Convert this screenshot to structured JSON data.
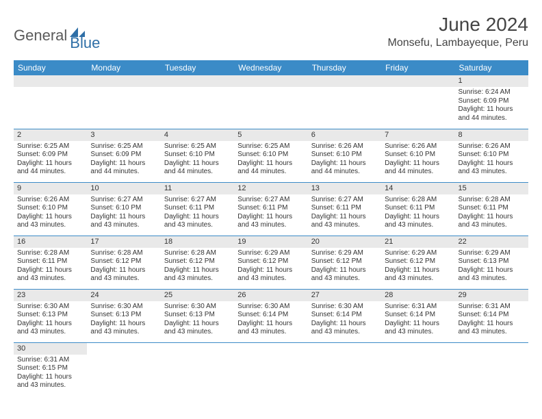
{
  "brand": {
    "part1": "General",
    "part2": "Blue"
  },
  "title": "June 2024",
  "location": "Monsefu, Lambayeque, Peru",
  "colors": {
    "header_bg": "#3b8bc7",
    "header_text": "#ffffff",
    "daynum_bg": "#e9e9e9",
    "border": "#3b8bc7",
    "brand_gray": "#5a5a5a",
    "brand_blue": "#2f6fa7"
  },
  "daysOfWeek": [
    "Sunday",
    "Monday",
    "Tuesday",
    "Wednesday",
    "Thursday",
    "Friday",
    "Saturday"
  ],
  "weeks": [
    [
      null,
      null,
      null,
      null,
      null,
      null,
      {
        "n": "1",
        "sr": "6:24 AM",
        "ss": "6:09 PM",
        "dl": "11 hours and 44 minutes."
      }
    ],
    [
      {
        "n": "2",
        "sr": "6:25 AM",
        "ss": "6:09 PM",
        "dl": "11 hours and 44 minutes."
      },
      {
        "n": "3",
        "sr": "6:25 AM",
        "ss": "6:09 PM",
        "dl": "11 hours and 44 minutes."
      },
      {
        "n": "4",
        "sr": "6:25 AM",
        "ss": "6:10 PM",
        "dl": "11 hours and 44 minutes."
      },
      {
        "n": "5",
        "sr": "6:25 AM",
        "ss": "6:10 PM",
        "dl": "11 hours and 44 minutes."
      },
      {
        "n": "6",
        "sr": "6:26 AM",
        "ss": "6:10 PM",
        "dl": "11 hours and 44 minutes."
      },
      {
        "n": "7",
        "sr": "6:26 AM",
        "ss": "6:10 PM",
        "dl": "11 hours and 44 minutes."
      },
      {
        "n": "8",
        "sr": "6:26 AM",
        "ss": "6:10 PM",
        "dl": "11 hours and 43 minutes."
      }
    ],
    [
      {
        "n": "9",
        "sr": "6:26 AM",
        "ss": "6:10 PM",
        "dl": "11 hours and 43 minutes."
      },
      {
        "n": "10",
        "sr": "6:27 AM",
        "ss": "6:10 PM",
        "dl": "11 hours and 43 minutes."
      },
      {
        "n": "11",
        "sr": "6:27 AM",
        "ss": "6:11 PM",
        "dl": "11 hours and 43 minutes."
      },
      {
        "n": "12",
        "sr": "6:27 AM",
        "ss": "6:11 PM",
        "dl": "11 hours and 43 minutes."
      },
      {
        "n": "13",
        "sr": "6:27 AM",
        "ss": "6:11 PM",
        "dl": "11 hours and 43 minutes."
      },
      {
        "n": "14",
        "sr": "6:28 AM",
        "ss": "6:11 PM",
        "dl": "11 hours and 43 minutes."
      },
      {
        "n": "15",
        "sr": "6:28 AM",
        "ss": "6:11 PM",
        "dl": "11 hours and 43 minutes."
      }
    ],
    [
      {
        "n": "16",
        "sr": "6:28 AM",
        "ss": "6:11 PM",
        "dl": "11 hours and 43 minutes."
      },
      {
        "n": "17",
        "sr": "6:28 AM",
        "ss": "6:12 PM",
        "dl": "11 hours and 43 minutes."
      },
      {
        "n": "18",
        "sr": "6:28 AM",
        "ss": "6:12 PM",
        "dl": "11 hours and 43 minutes."
      },
      {
        "n": "19",
        "sr": "6:29 AM",
        "ss": "6:12 PM",
        "dl": "11 hours and 43 minutes."
      },
      {
        "n": "20",
        "sr": "6:29 AM",
        "ss": "6:12 PM",
        "dl": "11 hours and 43 minutes."
      },
      {
        "n": "21",
        "sr": "6:29 AM",
        "ss": "6:12 PM",
        "dl": "11 hours and 43 minutes."
      },
      {
        "n": "22",
        "sr": "6:29 AM",
        "ss": "6:13 PM",
        "dl": "11 hours and 43 minutes."
      }
    ],
    [
      {
        "n": "23",
        "sr": "6:30 AM",
        "ss": "6:13 PM",
        "dl": "11 hours and 43 minutes."
      },
      {
        "n": "24",
        "sr": "6:30 AM",
        "ss": "6:13 PM",
        "dl": "11 hours and 43 minutes."
      },
      {
        "n": "25",
        "sr": "6:30 AM",
        "ss": "6:13 PM",
        "dl": "11 hours and 43 minutes."
      },
      {
        "n": "26",
        "sr": "6:30 AM",
        "ss": "6:14 PM",
        "dl": "11 hours and 43 minutes."
      },
      {
        "n": "27",
        "sr": "6:30 AM",
        "ss": "6:14 PM",
        "dl": "11 hours and 43 minutes."
      },
      {
        "n": "28",
        "sr": "6:31 AM",
        "ss": "6:14 PM",
        "dl": "11 hours and 43 minutes."
      },
      {
        "n": "29",
        "sr": "6:31 AM",
        "ss": "6:14 PM",
        "dl": "11 hours and 43 minutes."
      }
    ],
    [
      {
        "n": "30",
        "sr": "6:31 AM",
        "ss": "6:15 PM",
        "dl": "11 hours and 43 minutes."
      },
      null,
      null,
      null,
      null,
      null,
      null
    ]
  ],
  "labels": {
    "sunrise": "Sunrise:",
    "sunset": "Sunset:",
    "daylight": "Daylight:"
  }
}
